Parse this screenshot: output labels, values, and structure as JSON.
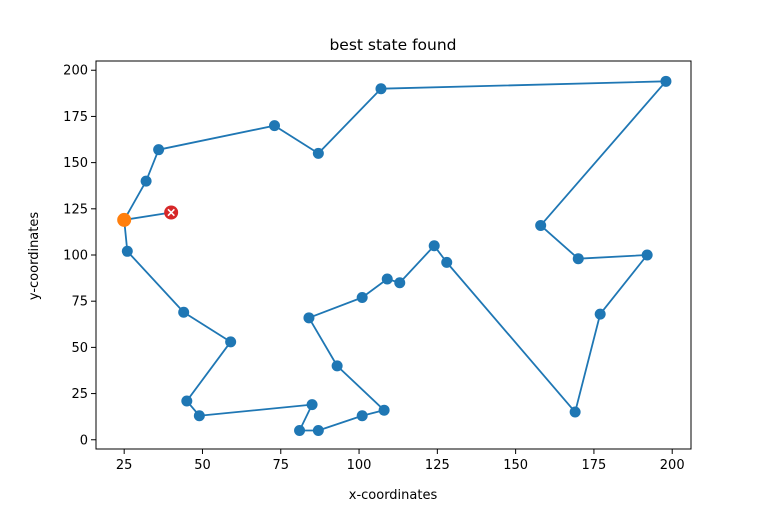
{
  "chart_data": {
    "type": "scatter",
    "title": "best state found",
    "xlabel": "x-coordinates",
    "ylabel": "y-coordinates",
    "xlim": [
      16,
      206
    ],
    "ylim": [
      -5,
      205
    ],
    "xticks": [
      "25",
      "50",
      "75",
      "100",
      "125",
      "150",
      "175",
      "200"
    ],
    "yticks": [
      "0",
      "25",
      "50",
      "75",
      "100",
      "125",
      "150",
      "175",
      "200"
    ],
    "grid": false,
    "colors": {
      "route": "#1f77b4",
      "start": "#ff7f0e",
      "end": "#d62728"
    },
    "series": [
      {
        "role": "route",
        "x": [
          40,
          25,
          26,
          44,
          59,
          45,
          49,
          85,
          81,
          87,
          101,
          108,
          93,
          84,
          101,
          109,
          113,
          124,
          128,
          169,
          177,
          192,
          170,
          158,
          198,
          107,
          87,
          73,
          36,
          32,
          25
        ],
        "y": [
          123,
          119,
          102,
          69,
          53,
          21,
          13,
          19,
          5,
          5,
          13,
          16,
          40,
          66,
          77,
          87,
          85,
          105,
          96,
          15,
          68,
          100,
          98,
          116,
          194,
          190,
          155,
          170,
          157,
          140,
          119
        ]
      }
    ],
    "start_point": {
      "x": 25,
      "y": 119
    },
    "end_point": {
      "x": 40,
      "y": 123
    }
  }
}
